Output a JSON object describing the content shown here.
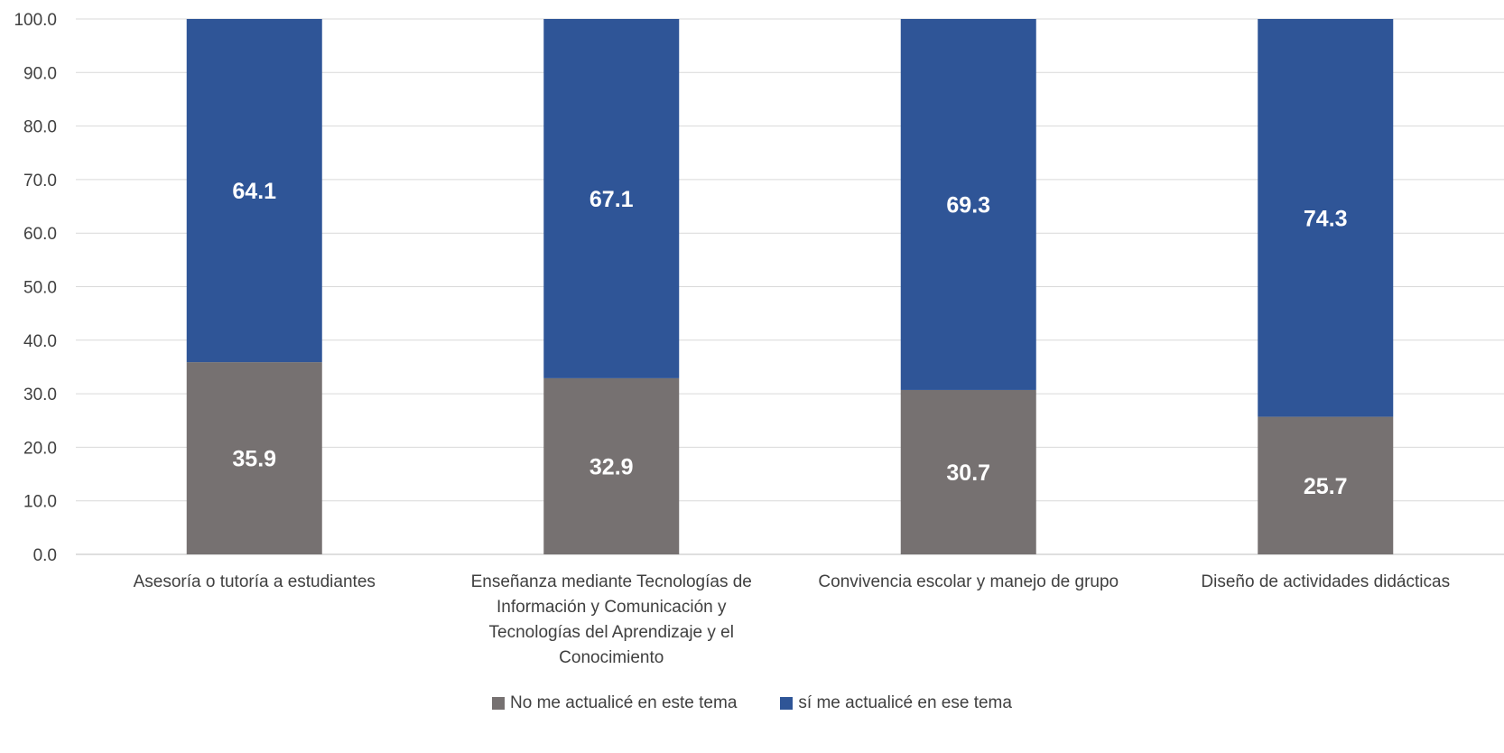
{
  "chart_data": {
    "type": "bar",
    "stacked": true,
    "categories": [
      [
        "Asesoría o tutoría a estudiantes"
      ],
      [
        "Enseñanza mediante Tecnologías de",
        "Información y Comunicación y",
        "Tecnologías del Aprendizaje y el",
        "Conocimiento"
      ],
      [
        "Convivencia escolar y manejo de grupo"
      ],
      [
        "Diseño de actividades didácticas"
      ]
    ],
    "series": [
      {
        "name": "No me actualicé en este tema",
        "color": "#767171",
        "values": [
          35.9,
          32.9,
          30.7,
          25.7
        ]
      },
      {
        "name": "sí me actualicé en ese tema",
        "color": "#2F5597",
        "values": [
          64.1,
          67.1,
          69.3,
          74.3
        ]
      }
    ],
    "ylim": [
      0,
      100
    ],
    "yticks": [
      "0.0",
      "10.0",
      "20.0",
      "30.0",
      "40.0",
      "50.0",
      "60.0",
      "70.0",
      "80.0",
      "90.0",
      "100.0"
    ],
    "grid": true,
    "legend_position": "bottom"
  }
}
